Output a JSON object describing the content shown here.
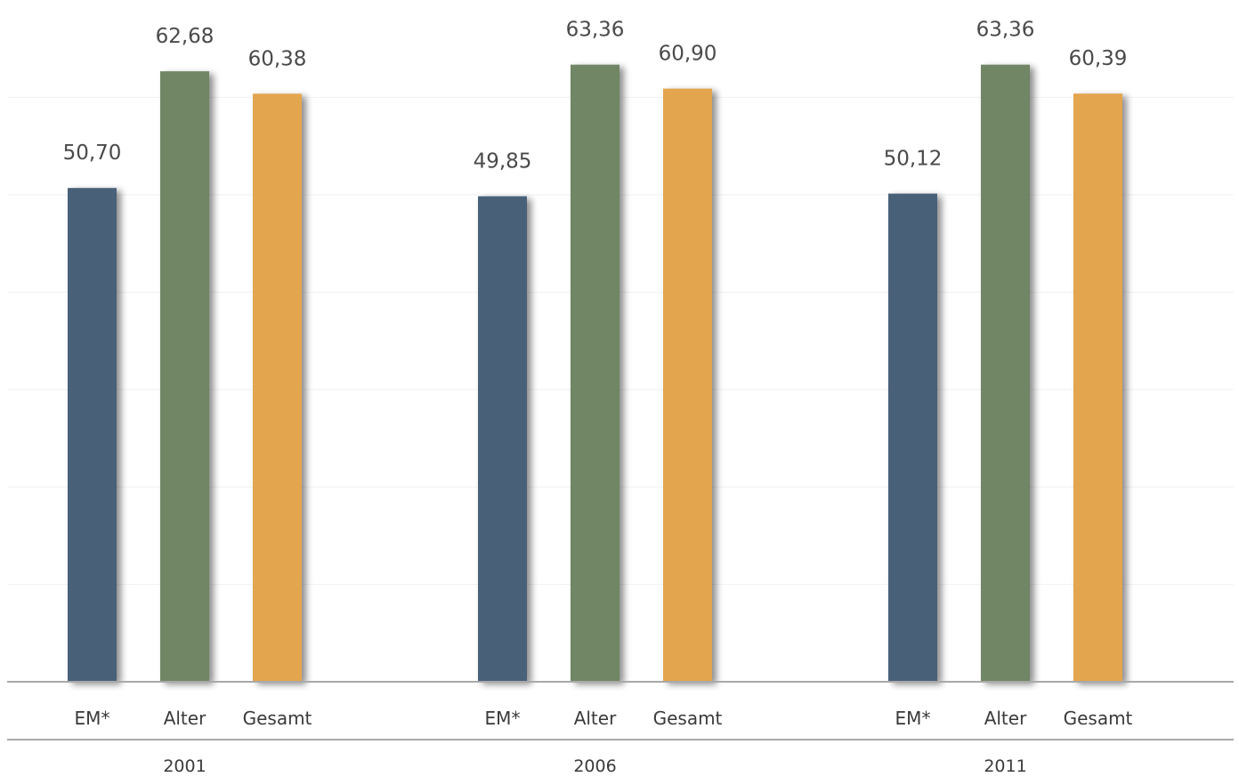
{
  "chart_data": {
    "type": "bar",
    "groups": [
      "2001",
      "2006",
      "2011"
    ],
    "categories": [
      "EM*",
      "Alter",
      "Gesamt"
    ],
    "values": [
      [
        50.7,
        62.68,
        60.38
      ],
      [
        49.85,
        63.36,
        60.9
      ],
      [
        50.12,
        63.36,
        60.39
      ]
    ],
    "value_labels": [
      [
        "50,70",
        "62,68",
        "60,38"
      ],
      [
        "49,85",
        "63,36",
        "60,90"
      ],
      [
        "50,12",
        "63,36",
        "60,39"
      ]
    ],
    "colors": [
      "#4a6079",
      "#708665",
      "#e4a550"
    ],
    "ylim": [
      0,
      70
    ],
    "grid": true,
    "title": "",
    "xlabel": "",
    "ylabel": ""
  }
}
